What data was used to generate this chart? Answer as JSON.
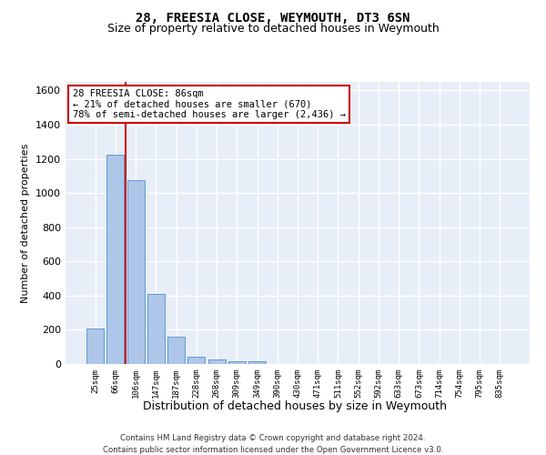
{
  "title": "28, FREESIA CLOSE, WEYMOUTH, DT3 6SN",
  "subtitle": "Size of property relative to detached houses in Weymouth",
  "xlabel": "Distribution of detached houses by size in Weymouth",
  "ylabel": "Number of detached properties",
  "categories": [
    "25sqm",
    "66sqm",
    "106sqm",
    "147sqm",
    "187sqm",
    "228sqm",
    "268sqm",
    "309sqm",
    "349sqm",
    "390sqm",
    "430sqm",
    "471sqm",
    "511sqm",
    "552sqm",
    "592sqm",
    "633sqm",
    "673sqm",
    "714sqm",
    "754sqm",
    "795sqm",
    "835sqm"
  ],
  "values": [
    205,
    1225,
    1075,
    410,
    160,
    45,
    27,
    18,
    15,
    0,
    0,
    0,
    0,
    0,
    0,
    0,
    0,
    0,
    0,
    0,
    0
  ],
  "bar_color": "#aec6e8",
  "bar_edge_color": "#5b9bd5",
  "background_color": "#e8eef8",
  "grid_color": "#ffffff",
  "vline_x_pos": 1.5,
  "vline_color": "#cc0000",
  "annotation_text": "28 FREESIA CLOSE: 86sqm\n← 21% of detached houses are smaller (670)\n78% of semi-detached houses are larger (2,436) →",
  "annotation_box_color": "#ffffff",
  "annotation_box_edge": "#cc0000",
  "ylim": [
    0,
    1650
  ],
  "yticks": [
    0,
    200,
    400,
    600,
    800,
    1000,
    1200,
    1400,
    1600
  ],
  "footnote1": "Contains HM Land Registry data © Crown copyright and database right 2024.",
  "footnote2": "Contains public sector information licensed under the Open Government Licence v3.0."
}
